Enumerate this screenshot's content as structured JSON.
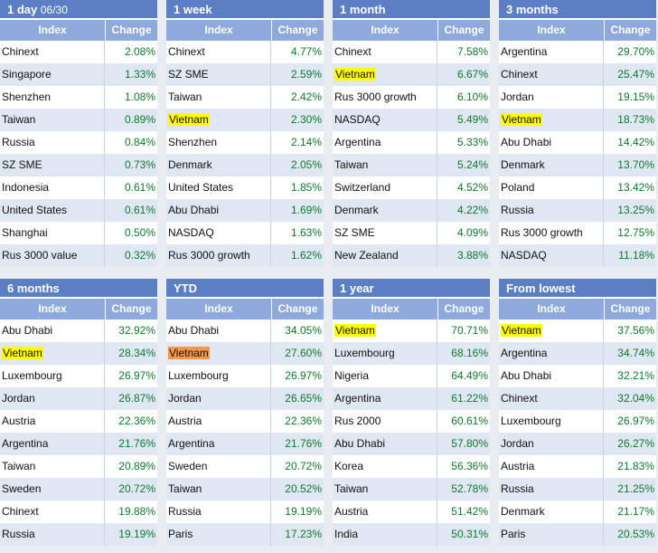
{
  "colors": {
    "title_bar": "#5b7fc2",
    "header_bar": "#8ea9db",
    "positive": "#0e7a2a",
    "highlight_yellow": "#ffff00",
    "highlight_orange": "#f79646"
  },
  "panels": [
    {
      "title": "1 day",
      "date": "06/30",
      "col_index": "Index",
      "col_change": "Change",
      "rows": [
        {
          "name": "Chinext",
          "value": "2.08%"
        },
        {
          "name": "Singapore",
          "value": "1.33%"
        },
        {
          "name": "Shenzhen",
          "value": "1.08%"
        },
        {
          "name": "Taiwan",
          "value": "0.89%"
        },
        {
          "name": "Russia",
          "value": "0.84%"
        },
        {
          "name": "SZ SME",
          "value": "0.73%"
        },
        {
          "name": "Indonesia",
          "value": "0.61%"
        },
        {
          "name": "United States",
          "value": "0.61%"
        },
        {
          "name": "Shanghai",
          "value": "0.50%"
        },
        {
          "name": "Rus 3000 value",
          "value": "0.32%"
        }
      ]
    },
    {
      "title": "1 week",
      "date": "",
      "col_index": "Index",
      "col_change": "Change",
      "rows": [
        {
          "name": "Chinext",
          "value": "4.77%"
        },
        {
          "name": "SZ SME",
          "value": "2.59%"
        },
        {
          "name": "Taiwan",
          "value": "2.42%"
        },
        {
          "name": "Vietnam",
          "value": "2.30%",
          "highlight": "yellow"
        },
        {
          "name": "Shenzhen",
          "value": "2.14%"
        },
        {
          "name": "Denmark",
          "value": "2.05%"
        },
        {
          "name": "United States",
          "value": "1.85%"
        },
        {
          "name": "Abu Dhabi",
          "value": "1.69%"
        },
        {
          "name": "NASDAQ",
          "value": "1.63%"
        },
        {
          "name": "Rus 3000 growth",
          "value": "1.62%"
        }
      ]
    },
    {
      "title": "1 month",
      "date": "",
      "col_index": "Index",
      "col_change": "Change",
      "rows": [
        {
          "name": "Chinext",
          "value": "7.58%"
        },
        {
          "name": "Vietnam",
          "value": "6.67%",
          "highlight": "yellow"
        },
        {
          "name": "Rus 3000 growth",
          "value": "6.10%"
        },
        {
          "name": "NASDAQ",
          "value": "5.49%"
        },
        {
          "name": "Argentina",
          "value": "5.33%"
        },
        {
          "name": "Taiwan",
          "value": "5.24%"
        },
        {
          "name": "Switzerland",
          "value": "4.52%"
        },
        {
          "name": "Denmark",
          "value": "4.22%"
        },
        {
          "name": "SZ SME",
          "value": "4.09%"
        },
        {
          "name": "New Zealand",
          "value": "3.88%"
        }
      ]
    },
    {
      "title": "3 months",
      "date": "",
      "col_index": "Index",
      "col_change": "Change",
      "rows": [
        {
          "name": "Argentina",
          "value": "29.70%"
        },
        {
          "name": "Chinext",
          "value": "25.47%"
        },
        {
          "name": "Jordan",
          "value": "19.15%"
        },
        {
          "name": "Vietnam",
          "value": "18.73%",
          "highlight": "yellow"
        },
        {
          "name": "Abu Dhabi",
          "value": "14.42%"
        },
        {
          "name": "Denmark",
          "value": "13.70%"
        },
        {
          "name": "Poland",
          "value": "13.42%"
        },
        {
          "name": "Russia",
          "value": "13.25%"
        },
        {
          "name": "Rus 3000 growth",
          "value": "12.75%"
        },
        {
          "name": "NASDAQ",
          "value": "11.18%"
        }
      ]
    },
    {
      "title": "6 months",
      "date": "",
      "col_index": "Index",
      "col_change": "Change",
      "rows": [
        {
          "name": "Abu Dhabi",
          "value": "32.92%"
        },
        {
          "name": "Vietnam",
          "value": "28.34%",
          "highlight": "yellow"
        },
        {
          "name": "Luxembourg",
          "value": "26.97%"
        },
        {
          "name": "Jordan",
          "value": "26.87%"
        },
        {
          "name": "Austria",
          "value": "22.36%"
        },
        {
          "name": "Argentina",
          "value": "21.76%"
        },
        {
          "name": "Taiwan",
          "value": "20.89%"
        },
        {
          "name": "Sweden",
          "value": "20.72%"
        },
        {
          "name": "Chinext",
          "value": "19.88%"
        },
        {
          "name": "Russia",
          "value": "19.19%"
        }
      ]
    },
    {
      "title": "YTD",
      "date": "",
      "col_index": "Index",
      "col_change": "Change",
      "rows": [
        {
          "name": "Abu Dhabi",
          "value": "34.05%"
        },
        {
          "name": "Vietnam",
          "value": "27.60%",
          "highlight": "orange"
        },
        {
          "name": "Luxembourg",
          "value": "26.97%"
        },
        {
          "name": "Jordan",
          "value": "26.65%"
        },
        {
          "name": "Austria",
          "value": "22.36%"
        },
        {
          "name": "Argentina",
          "value": "21.76%"
        },
        {
          "name": "Sweden",
          "value": "20.72%"
        },
        {
          "name": "Taiwan",
          "value": "20.52%"
        },
        {
          "name": "Russia",
          "value": "19.19%"
        },
        {
          "name": "Paris",
          "value": "17.23%"
        }
      ]
    },
    {
      "title": "1 year",
      "date": "",
      "col_index": "Index",
      "col_change": "Change",
      "rows": [
        {
          "name": "Vietnam",
          "value": "70.71%",
          "highlight": "yellow"
        },
        {
          "name": "Luxembourg",
          "value": "68.16%"
        },
        {
          "name": "Nigeria",
          "value": "64.49%"
        },
        {
          "name": "Argentina",
          "value": "61.22%"
        },
        {
          "name": "Rus 2000",
          "value": "60.61%"
        },
        {
          "name": "Abu Dhabi",
          "value": "57.80%"
        },
        {
          "name": "Korea",
          "value": "56.36%"
        },
        {
          "name": "Taiwan",
          "value": "52.78%"
        },
        {
          "name": "Austria",
          "value": "51.42%"
        },
        {
          "name": "India",
          "value": "50.31%"
        }
      ]
    },
    {
      "title": "From lowest",
      "date": "",
      "col_index": "Index",
      "col_change": "Change",
      "rows": [
        {
          "name": "Vietnam",
          "value": "37.56%",
          "highlight": "yellow"
        },
        {
          "name": "Argentina",
          "value": "34.74%"
        },
        {
          "name": "Abu Dhabi",
          "value": "32.21%"
        },
        {
          "name": "Chinext",
          "value": "32.04%"
        },
        {
          "name": "Luxembourg",
          "value": "26.97%"
        },
        {
          "name": "Jordan",
          "value": "26.27%"
        },
        {
          "name": "Austria",
          "value": "21.83%"
        },
        {
          "name": "Russia",
          "value": "21.25%"
        },
        {
          "name": "Denmark",
          "value": "21.17%"
        },
        {
          "name": "Paris",
          "value": "20.53%"
        }
      ]
    }
  ]
}
